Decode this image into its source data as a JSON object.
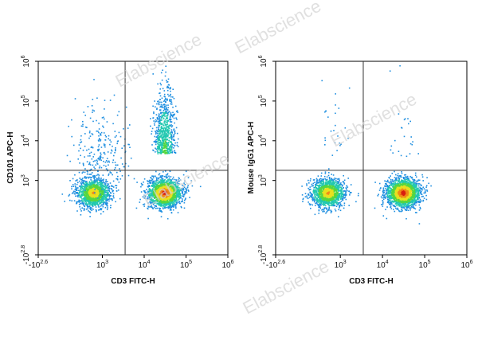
{
  "watermark_text": "Elabscience",
  "chart_data": [
    {
      "type": "scatter",
      "subtype": "flow-cytometry-density-dot-plot",
      "xlabel": "CD3 FITC-H",
      "ylabel": "CD101 APC-H",
      "x_scale": "biexponential",
      "y_scale": "biexponential",
      "xlim": [
        -398,
        1000000
      ],
      "ylim": [
        -631,
        1000000
      ],
      "x_ticks": [
        {
          "base": "-10",
          "exp": "2.6",
          "value": -398
        },
        {
          "base": "10",
          "exp": "3",
          "value": 1000
        },
        {
          "base": "10",
          "exp": "4",
          "value": 10000
        },
        {
          "base": "10",
          "exp": "5",
          "value": 100000
        },
        {
          "base": "10",
          "exp": "6",
          "value": 1000000
        }
      ],
      "y_ticks": [
        {
          "base": "-10",
          "exp": "2.8",
          "value": -631
        },
        {
          "base": "10",
          "exp": "3",
          "value": 1000
        },
        {
          "base": "10",
          "exp": "4",
          "value": 10000
        },
        {
          "base": "10",
          "exp": "5",
          "value": 100000
        },
        {
          "base": "10",
          "exp": "6",
          "value": 1000000
        }
      ],
      "gate_x": 3500,
      "gate_y": 1800,
      "populations": [
        {
          "x_center": 600,
          "y_center": 500,
          "size": "large",
          "density": "high"
        },
        {
          "x_center": 30000,
          "y_center": 500,
          "size": "large",
          "density": "very-high"
        },
        {
          "x_center": 30000,
          "y_center": 8000,
          "size": "medium",
          "density": "medium",
          "shape": "vertical-streak"
        },
        {
          "x_center": 800,
          "y_center": 6000,
          "size": "small",
          "density": "low",
          "shape": "diffuse"
        }
      ]
    },
    {
      "type": "scatter",
      "subtype": "flow-cytometry-density-dot-plot",
      "xlabel": "CD3 FITC-H",
      "ylabel": "Mouse IgG1 APC-H",
      "x_scale": "biexponential",
      "y_scale": "biexponential",
      "xlim": [
        -398,
        1000000
      ],
      "ylim": [
        -631,
        1000000
      ],
      "x_ticks": [
        {
          "base": "-10",
          "exp": "2.6",
          "value": -398
        },
        {
          "base": "10",
          "exp": "3",
          "value": 1000
        },
        {
          "base": "10",
          "exp": "4",
          "value": 10000
        },
        {
          "base": "10",
          "exp": "5",
          "value": 100000
        },
        {
          "base": "10",
          "exp": "6",
          "value": 1000000
        }
      ],
      "y_ticks": [
        {
          "base": "-10",
          "exp": "2.8",
          "value": -631
        },
        {
          "base": "10",
          "exp": "3",
          "value": 1000
        },
        {
          "base": "10",
          "exp": "4",
          "value": 10000
        },
        {
          "base": "10",
          "exp": "5",
          "value": 100000
        },
        {
          "base": "10",
          "exp": "6",
          "value": 1000000
        }
      ],
      "gate_x": 3500,
      "gate_y": 1800,
      "populations": [
        {
          "x_center": 500,
          "y_center": 500,
          "size": "large",
          "density": "high"
        },
        {
          "x_center": 30000,
          "y_center": 500,
          "size": "large",
          "density": "very-high"
        },
        {
          "x_center": 30000,
          "y_center": 8000,
          "size": "small",
          "density": "very-low",
          "shape": "sparse"
        },
        {
          "x_center": 700,
          "y_center": 8000,
          "size": "small",
          "density": "very-low",
          "shape": "sparse"
        }
      ]
    }
  ]
}
